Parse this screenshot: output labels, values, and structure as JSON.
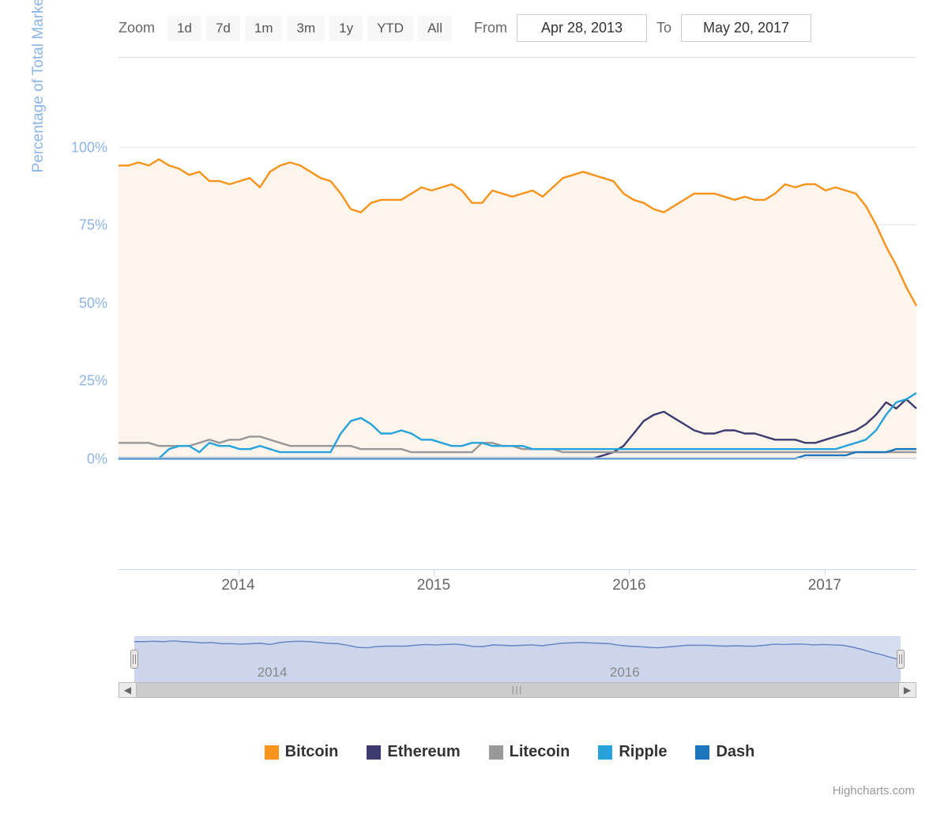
{
  "controls": {
    "zoom_label": "Zoom",
    "ranges": [
      "1d",
      "7d",
      "1m",
      "3m",
      "1y",
      "YTD",
      "All"
    ],
    "from_label": "From",
    "to_label": "To",
    "from_value": "Apr 28, 2013",
    "to_value": "May 20, 2017"
  },
  "yaxis": {
    "title": "Percentage of Total Market Cap",
    "label_color": "#8cb4e8",
    "ticks": [
      0,
      25,
      50,
      75,
      100
    ],
    "tick_labels": [
      "0%",
      "25%",
      "50%",
      "75%",
      "100%"
    ],
    "min": 0,
    "max": 104
  },
  "xaxis": {
    "ticks_pct": [
      15,
      39.5,
      64,
      88.5
    ],
    "tick_labels": [
      "2014",
      "2015",
      "2016",
      "2017"
    ]
  },
  "navigator": {
    "ticks_pct": [
      18,
      64
    ],
    "tick_labels": [
      "2014",
      "2016"
    ],
    "handle_left_pct": 0,
    "handle_right_pct": 100,
    "line_color": "#6685c2",
    "mask_color": "rgba(102,133,194,0.25)",
    "series_norm": [
      94,
      94,
      95,
      94,
      96,
      94,
      93,
      91,
      92,
      89,
      89,
      88,
      89,
      90,
      87,
      92,
      94,
      95,
      94,
      92,
      90,
      89,
      85,
      80,
      79,
      82,
      83,
      83,
      83,
      85,
      87,
      86,
      87,
      88,
      86,
      82,
      82,
      86,
      85,
      84,
      85,
      86,
      84,
      87,
      90,
      91,
      92,
      91,
      90,
      89,
      85,
      83,
      82,
      80,
      79,
      81,
      83,
      85,
      85,
      85,
      84,
      83,
      84,
      83,
      83,
      85,
      88,
      87,
      88,
      88,
      86,
      87,
      86,
      85,
      81,
      75,
      68,
      62,
      55,
      49
    ]
  },
  "plot": {
    "background_fill": "#fdf4ec",
    "grid_color": "#e6e6e6",
    "line_width": 2.4
  },
  "series": [
    {
      "name": "Bitcoin",
      "color": "#f7931a",
      "values": [
        94,
        94,
        95,
        94,
        96,
        94,
        93,
        91,
        92,
        89,
        89,
        88,
        89,
        90,
        87,
        92,
        94,
        95,
        94,
        92,
        90,
        89,
        85,
        80,
        79,
        82,
        83,
        83,
        83,
        85,
        87,
        86,
        87,
        88,
        86,
        82,
        82,
        86,
        85,
        84,
        85,
        86,
        84,
        87,
        90,
        91,
        92,
        91,
        90,
        89,
        85,
        83,
        82,
        80,
        79,
        81,
        83,
        85,
        85,
        85,
        84,
        83,
        84,
        83,
        83,
        85,
        88,
        87,
        88,
        88,
        86,
        87,
        86,
        85,
        81,
        75,
        68,
        62,
        55,
        49
      ]
    },
    {
      "name": "Ethereum",
      "color": "#3c3c72",
      "values": [
        0,
        0,
        0,
        0,
        0,
        0,
        0,
        0,
        0,
        0,
        0,
        0,
        0,
        0,
        0,
        0,
        0,
        0,
        0,
        0,
        0,
        0,
        0,
        0,
        0,
        0,
        0,
        0,
        0,
        0,
        0,
        0,
        0,
        0,
        0,
        0,
        0,
        0,
        0,
        0,
        0,
        0,
        0,
        0,
        0,
        0,
        0,
        0,
        1,
        2,
        4,
        8,
        12,
        14,
        15,
        13,
        11,
        9,
        8,
        8,
        9,
        9,
        8,
        8,
        7,
        6,
        6,
        6,
        5,
        5,
        6,
        7,
        8,
        9,
        11,
        14,
        18,
        16,
        19,
        16
      ]
    },
    {
      "name": "Litecoin",
      "color": "#989898",
      "values": [
        5,
        5,
        5,
        5,
        4,
        4,
        4,
        4,
        5,
        6,
        5,
        6,
        6,
        7,
        7,
        6,
        5,
        4,
        4,
        4,
        4,
        4,
        4,
        4,
        3,
        3,
        3,
        3,
        3,
        2,
        2,
        2,
        2,
        2,
        2,
        2,
        5,
        5,
        4,
        4,
        3,
        3,
        3,
        3,
        2,
        2,
        2,
        2,
        2,
        2,
        2,
        2,
        2,
        2,
        2,
        2,
        2,
        2,
        2,
        2,
        2,
        2,
        2,
        2,
        2,
        2,
        2,
        2,
        2,
        2,
        2,
        2,
        2,
        2,
        2,
        2,
        2,
        2,
        2,
        2
      ]
    },
    {
      "name": "Ripple",
      "color": "#27a2db",
      "values": [
        0,
        0,
        0,
        0,
        0,
        3,
        4,
        4,
        2,
        5,
        4,
        4,
        3,
        3,
        4,
        3,
        2,
        2,
        2,
        2,
        2,
        2,
        8,
        12,
        13,
        11,
        8,
        8,
        9,
        8,
        6,
        6,
        5,
        4,
        4,
        5,
        5,
        4,
        4,
        4,
        4,
        3,
        3,
        3,
        3,
        3,
        3,
        3,
        3,
        3,
        3,
        3,
        3,
        3,
        3,
        3,
        3,
        3,
        3,
        3,
        3,
        3,
        3,
        3,
        3,
        3,
        3,
        3,
        3,
        3,
        3,
        3,
        4,
        5,
        6,
        9,
        14,
        18,
        19,
        21
      ]
    },
    {
      "name": "Dash",
      "color": "#1c75bc",
      "values": [
        0,
        0,
        0,
        0,
        0,
        0,
        0,
        0,
        0,
        0,
        0,
        0,
        0,
        0,
        0,
        0,
        0,
        0,
        0,
        0,
        0,
        0,
        0,
        0,
        0,
        0,
        0,
        0,
        0,
        0,
        0,
        0,
        0,
        0,
        0,
        0,
        0,
        0,
        0,
        0,
        0,
        0,
        0,
        0,
        0,
        0,
        0,
        0,
        0,
        0,
        0,
        0,
        0,
        0,
        0,
        0,
        0,
        0,
        0,
        0,
        0,
        0,
        0,
        0,
        0,
        0,
        0,
        0,
        1,
        1,
        1,
        1,
        1,
        2,
        2,
        2,
        2,
        3,
        3,
        3
      ]
    }
  ],
  "legend": {
    "items": [
      "Bitcoin",
      "Ethereum",
      "Litecoin",
      "Ripple",
      "Dash"
    ]
  },
  "credits": "Highcharts.com"
}
